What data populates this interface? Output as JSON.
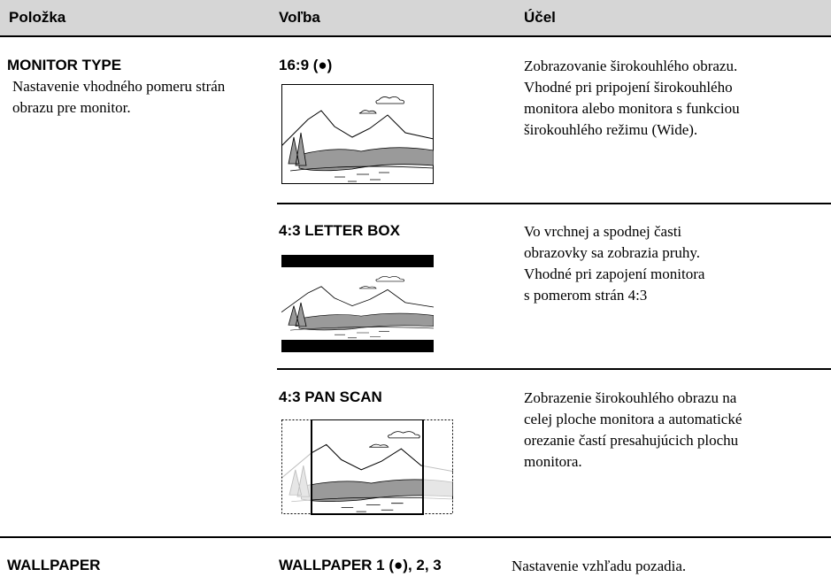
{
  "header": {
    "columns": [
      "Položka",
      "Voľba",
      "Účel"
    ]
  },
  "rows": [
    {
      "item": "MONITOR TYPE",
      "description": [
        "Nastavenie vhodného pomeru strán",
        "obrazu pre monitor."
      ],
      "options": [
        {
          "label": "16:9 (●)",
          "purpose": [
            "Zobrazovanie širokouhlého obrazu.",
            "Vhodné pri pripojení širokouhlého",
            "monitora alebo monitora s funkciou",
            "širokouhlého režimu (Wide)."
          ]
        },
        {
          "label": "4:3 LETTER BOX",
          "purpose": [
            "Vo vrchnej a spodnej časti",
            "obrazovky sa zobrazia pruhy.",
            "Vhodné pri zapojení monitora",
            "s pomerom strán 4:3"
          ]
        },
        {
          "label": "4:3 PAN SCAN",
          "purpose": [
            "Zobrazenie širokouhlého obrazu na",
            "celej ploche monitora a automatické",
            "orezanie častí presahujúcich plochu",
            "monitora."
          ]
        }
      ]
    },
    {
      "item": "WALLPAPER",
      "options": [
        {
          "label": "WALLPAPER 1 (●), 2, 3",
          "purpose": [
            "Nastavenie vzhľadu pozadia."
          ]
        }
      ]
    }
  ]
}
